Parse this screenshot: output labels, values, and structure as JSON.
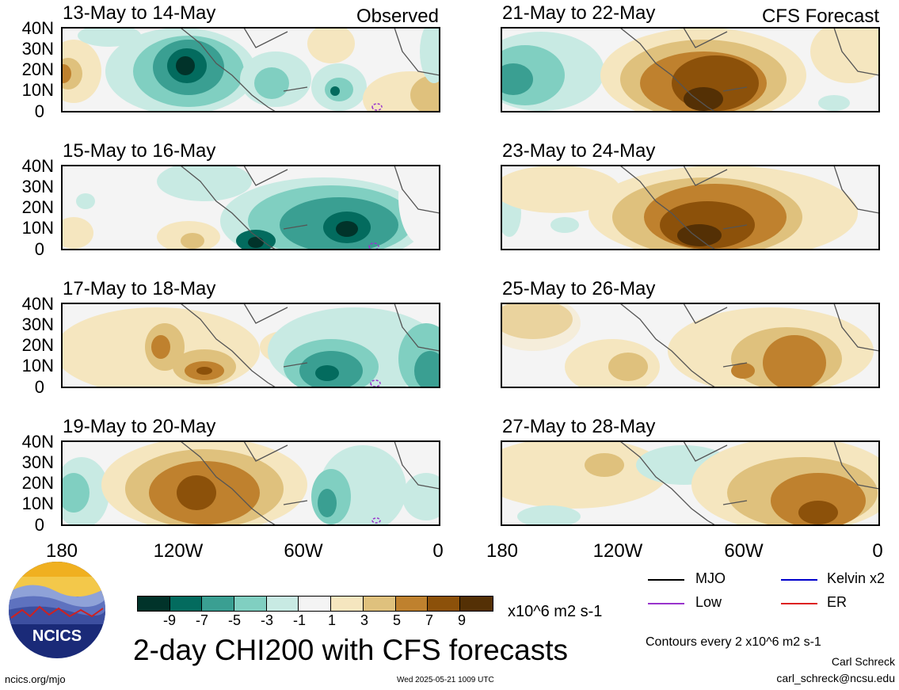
{
  "panels_left": [
    {
      "title": "13-May to 14-May",
      "corner": "Observed"
    },
    {
      "title": "15-May to 16-May",
      "corner": ""
    },
    {
      "title": "17-May to 18-May",
      "corner": ""
    },
    {
      "title": "19-May to 20-May",
      "corner": ""
    }
  ],
  "panels_right": [
    {
      "title": "21-May to 22-May",
      "corner": "CFS Forecast"
    },
    {
      "title": "23-May to 24-May",
      "corner": ""
    },
    {
      "title": "25-May to 26-May",
      "corner": ""
    },
    {
      "title": "27-May to 28-May",
      "corner": ""
    }
  ],
  "lat_labels": [
    "40N",
    "30N",
    "20N",
    "10N",
    "0"
  ],
  "lon_labels": [
    "180",
    "120W",
    "60W",
    "0"
  ],
  "colorbar": {
    "colors": [
      "#01332a",
      "#036b5e",
      "#3a9f92",
      "#80cfc1",
      "#c8eae3",
      "#f4f4f4",
      "#f5e6bf",
      "#dfc17d",
      "#bf812e",
      "#8c510a",
      "#543005"
    ],
    "ticks": [
      "-9",
      "-7",
      "-5",
      "-3",
      "-1",
      "1",
      "3",
      "5",
      "7",
      "9"
    ],
    "units": "x10^6 m2 s-1"
  },
  "legend": [
    {
      "label": "MJO",
      "color": "#000000"
    },
    {
      "label": "Kelvin x2",
      "color": "#0000cc"
    },
    {
      "label": "Low",
      "color": "#9933cc"
    },
    {
      "label": "ER",
      "color": "#dd2222"
    }
  ],
  "main_title": "2-day CHI200 with CFS forecasts",
  "contour_note": "Contours every 2 x10^6 m2 s-1",
  "author_name": "Carl Schreck",
  "author_email": "carl_schreck@ncsu.edu",
  "site": "ncics.org/mjo",
  "timestamp": "Wed 2025-05-21 1009 UTC",
  "logo_text": "NCICS"
}
